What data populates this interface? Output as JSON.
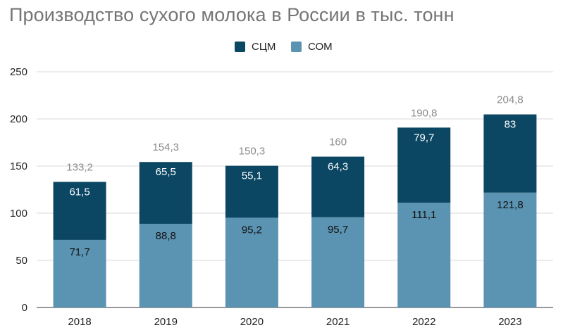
{
  "chart_data": {
    "type": "bar",
    "stacked": true,
    "title": "Производство сухого молока в России в тыс. тонн",
    "categories": [
      "2018",
      "2019",
      "2020",
      "2021",
      "2022",
      "2023"
    ],
    "series": [
      {
        "name": "СОМ",
        "values": [
          71.7,
          88.8,
          95.2,
          95.7,
          111.1,
          121.8
        ],
        "labels": [
          "71,7",
          "88,8",
          "95,2",
          "95,7",
          "111,1",
          "121,8"
        ],
        "color": "#5b93b2"
      },
      {
        "name": "СЦМ",
        "values": [
          61.5,
          65.5,
          55.1,
          64.3,
          79.7,
          83
        ],
        "labels": [
          "61,5",
          "65,5",
          "55,1",
          "64,3",
          "79,7",
          "83"
        ],
        "color": "#0b4763"
      }
    ],
    "totals": [
      133.2,
      154.3,
      150.3,
      160,
      190.8,
      204.8
    ],
    "total_labels": [
      "133,2",
      "154,3",
      "150,3",
      "160",
      "190,8",
      "204,8"
    ],
    "ylim": [
      0,
      250
    ],
    "yticks": [
      0,
      50,
      100,
      150,
      200,
      250
    ],
    "grid": true,
    "legend_position": "top",
    "legend_order": [
      "СЦМ",
      "СОМ"
    ]
  }
}
